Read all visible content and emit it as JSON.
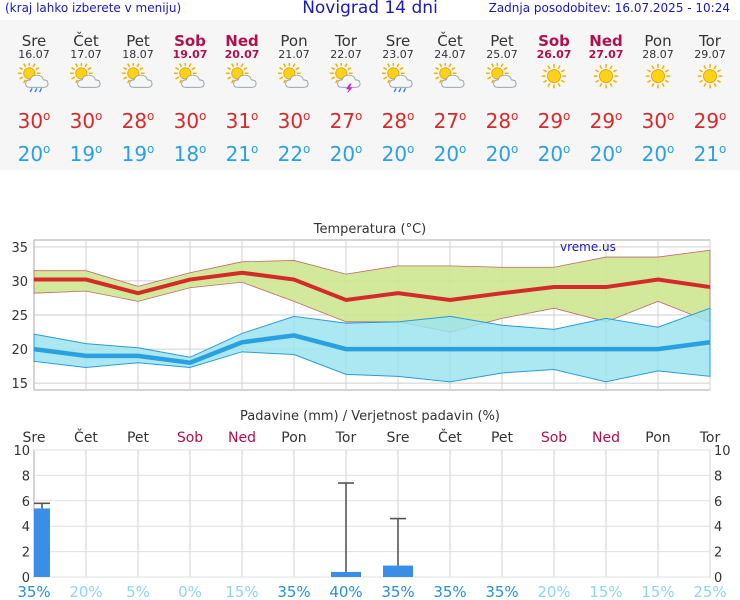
{
  "header": {
    "left_note": "(kraj lahko izberete v meniju)",
    "title": "Novigrad 14 dni",
    "updated": "Zadnja posodobitev: 16.07.2025 - 10:24"
  },
  "degree": "o",
  "days": [
    {
      "name": "Sre",
      "date": "16.07",
      "weekend": false,
      "icon": "sun-cloud-rain-icon",
      "max": "30",
      "min": "20"
    },
    {
      "name": "Čet",
      "date": "17.07",
      "weekend": false,
      "icon": "sun-cloud-icon",
      "max": "30",
      "min": "19"
    },
    {
      "name": "Pet",
      "date": "18.07",
      "weekend": false,
      "icon": "sun-cloud-icon",
      "max": "28",
      "min": "19"
    },
    {
      "name": "Sob",
      "date": "19.07",
      "weekend": true,
      "icon": "sun-cloud-icon",
      "max": "30",
      "min": "18"
    },
    {
      "name": "Ned",
      "date": "20.07",
      "weekend": true,
      "icon": "sun-cloud-icon",
      "max": "31",
      "min": "21"
    },
    {
      "name": "Pon",
      "date": "21.07",
      "weekend": false,
      "icon": "sun-cloud-icon",
      "max": "30",
      "min": "22"
    },
    {
      "name": "Tor",
      "date": "22.07",
      "weekend": false,
      "icon": "sun-cloud-storm-icon",
      "max": "27",
      "min": "20"
    },
    {
      "name": "Sre",
      "date": "23.07",
      "weekend": false,
      "icon": "sun-cloud-rain-icon",
      "max": "28",
      "min": "20"
    },
    {
      "name": "Čet",
      "date": "24.07",
      "weekend": false,
      "icon": "sun-cloud-icon",
      "max": "27",
      "min": "20"
    },
    {
      "name": "Pet",
      "date": "25.07",
      "weekend": false,
      "icon": "sun-cloud-icon",
      "max": "28",
      "min": "20"
    },
    {
      "name": "Sob",
      "date": "26.07",
      "weekend": true,
      "icon": "sun-icon",
      "max": "29",
      "min": "20"
    },
    {
      "name": "Ned",
      "date": "27.07",
      "weekend": true,
      "icon": "sun-icon",
      "max": "29",
      "min": "20"
    },
    {
      "name": "Pon",
      "date": "28.07",
      "weekend": false,
      "icon": "sun-icon",
      "max": "30",
      "min": "20"
    },
    {
      "name": "Tor",
      "date": "29.07",
      "weekend": false,
      "icon": "sun-icon",
      "max": "29",
      "min": "21"
    }
  ],
  "colors": {
    "max": "#d42a2a",
    "min": "#2aa0e0",
    "weekend": "#b0104f",
    "rain_bar": "#3a8ee6",
    "max_band": "#cde68f",
    "min_band": "#9de4ef",
    "overlap": "#7fcf8f"
  },
  "chart_data": [
    {
      "type": "line",
      "title": "Temperatura (°C)",
      "watermark": "vreme.us",
      "ylim": [
        14,
        36
      ],
      "yticks": [
        15,
        20,
        25,
        30,
        35
      ],
      "categories": [
        "Sre",
        "Čet",
        "Pet",
        "Sob",
        "Ned",
        "Pon",
        "Tor",
        "Sre",
        "Čet",
        "Pet",
        "Sob",
        "Ned",
        "Pon",
        "Tor"
      ],
      "series": [
        {
          "name": "max",
          "values": [
            30.2,
            30.2,
            28.2,
            30.2,
            31.2,
            30.2,
            27.2,
            28.2,
            27.2,
            28.2,
            29.1,
            29.1,
            30.2,
            29.1
          ]
        },
        {
          "name": "max_upper",
          "values": [
            31.5,
            31.5,
            29.2,
            31.2,
            32.8,
            33.0,
            31.0,
            32.2,
            32.2,
            32.0,
            32.0,
            33.5,
            33.5,
            34.5
          ]
        },
        {
          "name": "max_lower",
          "values": [
            28.2,
            28.5,
            27.0,
            29.0,
            29.8,
            27.0,
            24.0,
            24.0,
            22.5,
            24.5,
            26.0,
            24.0,
            27.0,
            24.0
          ]
        },
        {
          "name": "min",
          "values": [
            20.0,
            19.0,
            19.0,
            18.0,
            21.0,
            22.0,
            20.0,
            20.0,
            20.0,
            20.0,
            20.0,
            20.0,
            20.0,
            21.0
          ]
        },
        {
          "name": "min_upper",
          "values": [
            22.2,
            20.8,
            20.2,
            18.8,
            22.3,
            24.8,
            23.8,
            24.0,
            24.8,
            23.5,
            22.9,
            24.5,
            23.2,
            26.0
          ]
        },
        {
          "name": "min_lower",
          "values": [
            18.2,
            17.3,
            18.0,
            17.3,
            19.6,
            19.2,
            16.3,
            16.0,
            15.2,
            16.5,
            17.0,
            15.2,
            16.8,
            16.0
          ]
        }
      ]
    },
    {
      "type": "bar",
      "title": "Padavine (mm) / Verjetnost padavin (%)",
      "ylim": [
        0,
        10
      ],
      "yticks": [
        0,
        2,
        4,
        6,
        8,
        10
      ],
      "categories": [
        "Sre",
        "Čet",
        "Pet",
        "Sob",
        "Ned",
        "Pon",
        "Tor",
        "Sre",
        "Čet",
        "Pet",
        "Sob",
        "Ned",
        "Pon",
        "Tor"
      ],
      "precipitation_mm": [
        5.4,
        0,
        0,
        0,
        0,
        0,
        0.4,
        0.9,
        0,
        0,
        0,
        0,
        0,
        0
      ],
      "error_max_mm": [
        5.8,
        0,
        0,
        0,
        0,
        0,
        7.4,
        4.6,
        0,
        0,
        0,
        0,
        0,
        0
      ],
      "probability": [
        "35%",
        "20%",
        "5%",
        "0%",
        "15%",
        "35%",
        "40%",
        "35%",
        "35%",
        "35%",
        "20%",
        "15%",
        "15%",
        "25%"
      ],
      "probability_values": [
        35,
        20,
        5,
        0,
        15,
        35,
        40,
        35,
        35,
        35,
        20,
        15,
        15,
        25
      ]
    }
  ]
}
